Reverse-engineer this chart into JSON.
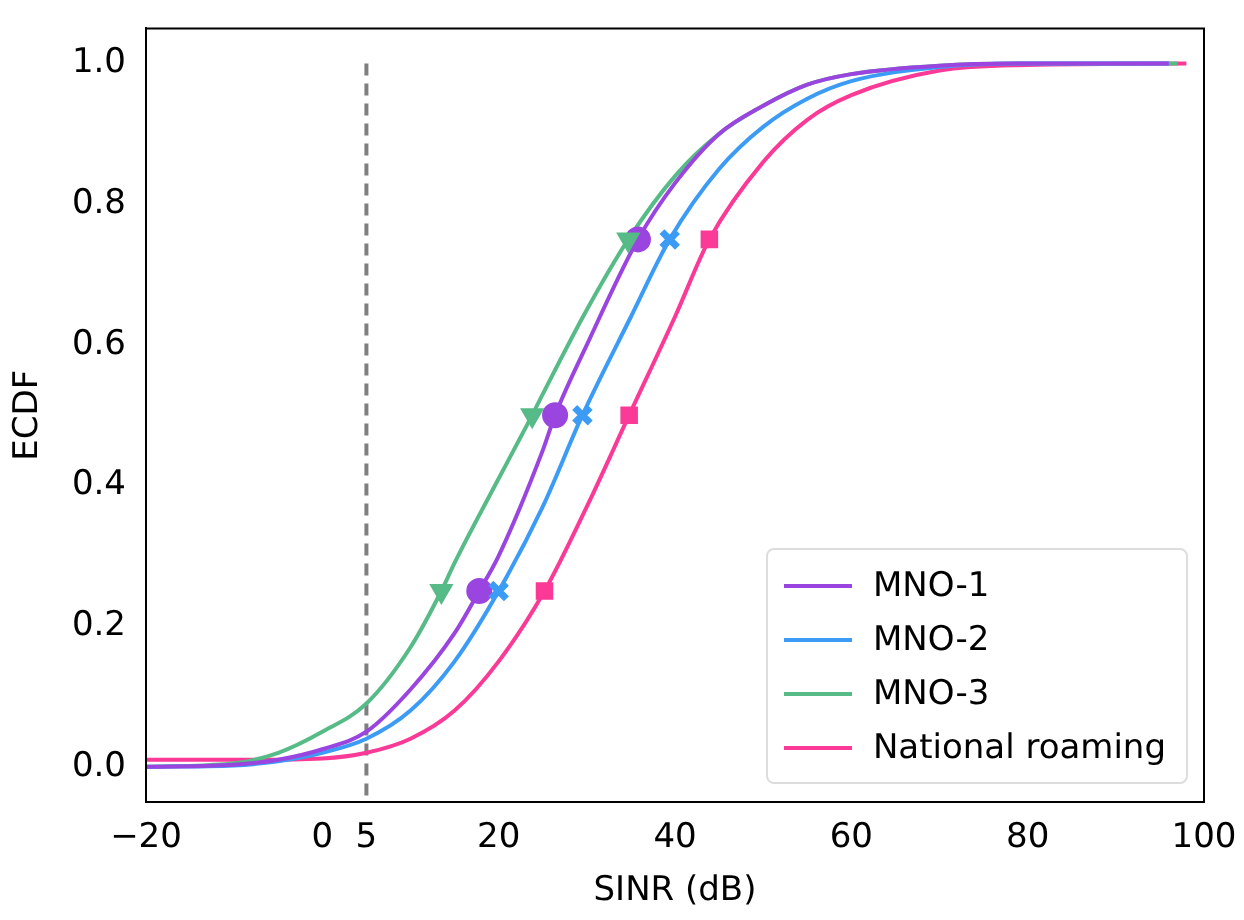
{
  "chart_data": {
    "type": "line",
    "xlabel": "SINR (dB)",
    "ylabel": "ECDF",
    "xlim": [
      -20,
      100
    ],
    "ylim": [
      -0.05,
      1.05
    ],
    "xticks": [
      {
        "value": -20,
        "label": "−20"
      },
      0,
      5,
      20,
      40,
      60,
      80,
      100
    ],
    "yticks": [
      {
        "value": 0,
        "label": "0.0"
      },
      {
        "value": 0.2,
        "label": "0.2"
      },
      {
        "value": 0.4,
        "label": "0.4"
      },
      {
        "value": 0.6,
        "label": "0.6"
      },
      {
        "value": 0.8,
        "label": "0.8"
      },
      {
        "value": 1,
        "label": "1.0"
      }
    ],
    "grid": false,
    "legend": "bottom right",
    "ref_lines": [
      {
        "axis": "x",
        "value": 5,
        "color": "#7f7f7f",
        "line_style": "dashed"
      }
    ],
    "series": [
      {
        "name": "MNO-1",
        "type": "line",
        "color": "#9b45e0",
        "marker": "none",
        "x": [
          -20,
          -10,
          -5,
          0,
          5,
          10,
          15,
          17.8,
          20,
          25,
          26.4,
          30,
          35.8,
          40,
          45,
          50,
          55,
          60,
          70,
          80,
          96
        ],
        "values": [
          0,
          0.003,
          0.01,
          0.025,
          0.05,
          0.11,
          0.19,
          0.25,
          0.3,
          0.45,
          0.5,
          0.6,
          0.75,
          0.83,
          0.9,
          0.94,
          0.97,
          0.985,
          0.997,
          1,
          1
        ]
      },
      {
        "name": "MNO-2",
        "type": "line",
        "color": "#3c9cf5",
        "marker": "none",
        "x": [
          -20,
          -10,
          -5,
          0,
          5,
          10,
          15,
          20,
          25,
          29.5,
          35,
          39.4,
          45,
          50,
          55,
          60,
          70,
          80,
          96
        ],
        "values": [
          0,
          0.002,
          0.008,
          0.02,
          0.04,
          0.08,
          0.15,
          0.25,
          0.37,
          0.5,
          0.64,
          0.75,
          0.85,
          0.91,
          0.95,
          0.975,
          0.995,
          1,
          1
        ]
      },
      {
        "name": "MNO-3",
        "type": "line",
        "color": "#56bb86",
        "marker": "none",
        "x": [
          -20,
          -10,
          -5,
          0,
          5,
          10,
          13.5,
          15,
          20,
          23.8,
          25,
          30,
          34.7,
          40,
          45,
          50,
          55,
          60,
          70,
          80,
          97
        ],
        "values": [
          0,
          0.005,
          0.02,
          0.05,
          0.09,
          0.17,
          0.25,
          0.29,
          0.41,
          0.5,
          0.53,
          0.65,
          0.75,
          0.84,
          0.9,
          0.94,
          0.97,
          0.985,
          0.997,
          1,
          1
        ]
      },
      {
        "name": "National roaming",
        "type": "line",
        "color": "#fa3a96",
        "marker": "none",
        "x": [
          -20,
          -10,
          0,
          5,
          10,
          15,
          20,
          25.2,
          30,
          34.8,
          40,
          43.9,
          50,
          55,
          60,
          70,
          80,
          98
        ],
        "values": [
          0.01,
          0.01,
          0.012,
          0.02,
          0.04,
          0.08,
          0.15,
          0.25,
          0.37,
          0.5,
          0.64,
          0.75,
          0.86,
          0.92,
          0.955,
          0.99,
          0.998,
          1
        ]
      },
      {
        "type": "scatter",
        "color": "#9b45e0",
        "marker": "circle",
        "x": [
          17.8,
          26.4,
          35.8
        ],
        "values": [
          0.25,
          0.5,
          0.75
        ]
      },
      {
        "type": "scatter",
        "color": "#3c9cf5",
        "marker": "cross",
        "x": [
          20,
          29.5,
          39.4
        ],
        "values": [
          0.25,
          0.5,
          0.75
        ]
      },
      {
        "type": "scatter",
        "color": "#56bb86",
        "marker": "triangle",
        "x": [
          13.5,
          23.8,
          34.7
        ],
        "values": [
          0.25,
          0.5,
          0.75
        ]
      },
      {
        "type": "scatter",
        "color": "#fa3a96",
        "marker": "square",
        "x": [
          25.2,
          34.8,
          43.9
        ],
        "values": [
          0.25,
          0.5,
          0.75
        ]
      }
    ]
  }
}
